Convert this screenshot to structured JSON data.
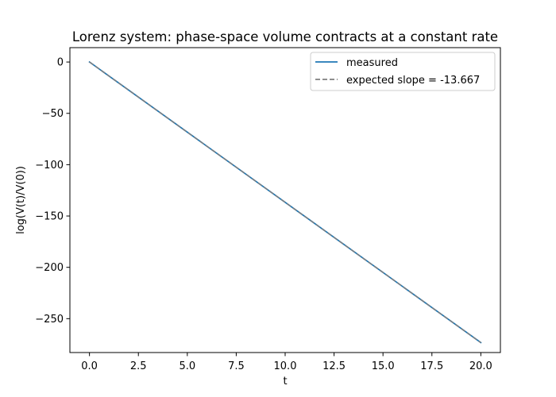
{
  "chart_data": {
    "type": "line",
    "title": "Lorenz system: phase-space volume contracts at a constant rate",
    "xlabel": "t",
    "ylabel": "log(V(t)/V(0))",
    "xlim": [
      -1.0,
      21.0
    ],
    "ylim": [
      -283.0,
      14.0
    ],
    "xticks": [
      0.0,
      2.5,
      5.0,
      7.5,
      10.0,
      12.5,
      15.0,
      17.5,
      20.0
    ],
    "xtick_labels": [
      "0.0",
      "2.5",
      "5.0",
      "7.5",
      "10.0",
      "12.5",
      "15.0",
      "17.5",
      "20.0"
    ],
    "yticks": [
      0,
      -50,
      -100,
      -150,
      -200,
      -250
    ],
    "ytick_labels": [
      "0",
      "−50",
      "−100",
      "−150",
      "−200",
      "−250"
    ],
    "grid": false,
    "legend_position": "top-right",
    "series": [
      {
        "name": "measured",
        "color": "#1f77b4",
        "style": "solid",
        "x": [
          0,
          20
        ],
        "y": [
          0,
          -273.33
        ]
      },
      {
        "name": "expected slope = -13.667",
        "color": "#7f7f7f",
        "style": "dashed",
        "x": [
          0,
          20
        ],
        "y": [
          0,
          -273.33
        ]
      }
    ]
  }
}
